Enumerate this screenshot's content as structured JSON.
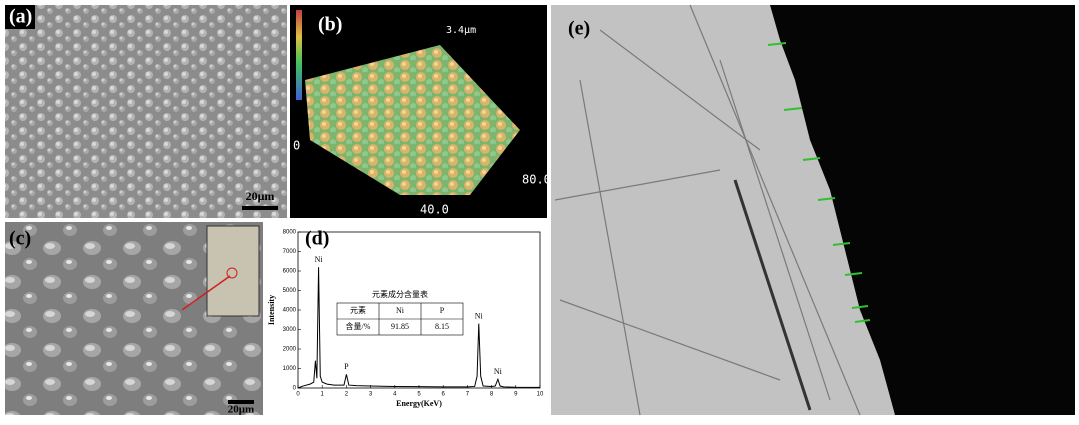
{
  "panels": {
    "a": {
      "label": "(a)",
      "scale_bar": "20μm"
    },
    "b": {
      "label": "(b)",
      "height_label": "3.4μm",
      "axis_origin": "0",
      "axis_x_end": "80.0",
      "axis_y_mid": "40.0"
    },
    "c": {
      "label": "(c)",
      "scale_bar": "20μm"
    },
    "e": {
      "label": "(e)"
    }
  },
  "chart_data": {
    "type": "line",
    "label": "(d)",
    "x_label": "Energy(KeV)",
    "y_label": "Intensity",
    "x": [
      0,
      0.2,
      0.5,
      0.65,
      0.72,
      0.78,
      0.85,
      0.92,
      1.0,
      1.2,
      1.5,
      1.9,
      2.0,
      2.1,
      2.4,
      3,
      4,
      5,
      6,
      7,
      7.3,
      7.4,
      7.47,
      7.55,
      7.65,
      8.0,
      8.15,
      8.26,
      8.35,
      8.5,
      9,
      10
    ],
    "values": [
      0,
      100,
      200,
      300,
      1400,
      500,
      6200,
      600,
      300,
      200,
      150,
      150,
      700,
      150,
      120,
      100,
      80,
      70,
      60,
      60,
      80,
      600,
      3300,
      600,
      100,
      80,
      100,
      450,
      100,
      60,
      40,
      30
    ],
    "color": "#000000",
    "xlim": [
      0,
      10
    ],
    "xticks": [
      0,
      1,
      2,
      3,
      4,
      5,
      6,
      7,
      8,
      9,
      10
    ],
    "ylim": [
      0,
      8000
    ],
    "yticks": [
      0,
      1000,
      2000,
      3000,
      4000,
      5000,
      6000,
      7000,
      8000
    ],
    "annotations": [
      {
        "text": "Ni",
        "x": 0.85
      },
      {
        "text": "P",
        "x": 2.0
      },
      {
        "text": "Ni",
        "x": 7.47
      },
      {
        "text": "Ni",
        "x": 8.26
      }
    ],
    "table": {
      "title": "元素成分含量表",
      "rows": [
        [
          "元素",
          "Ni",
          "P"
        ],
        [
          "含量/%",
          91.85,
          8.15
        ]
      ]
    }
  }
}
